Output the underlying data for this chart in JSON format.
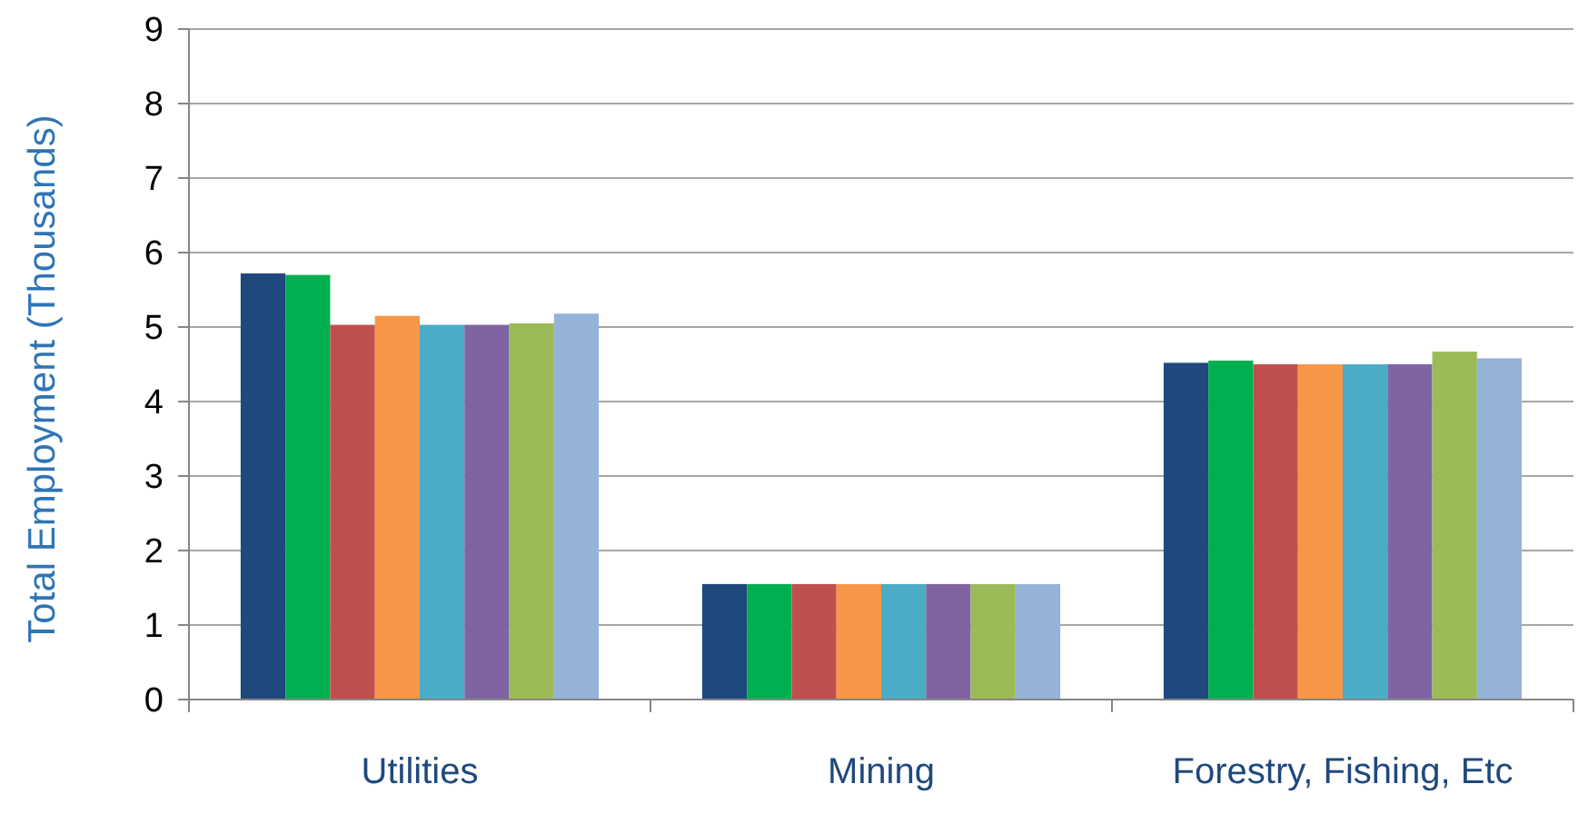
{
  "chart_data": {
    "type": "bar",
    "ylabel": "Total Employment (Thousands)",
    "categories": [
      "Utilities",
      "Mining",
      "Forestry, Fishing, Etc"
    ],
    "series": [
      {
        "color": "#1f497d",
        "values": [
          5.72,
          1.55,
          4.52
        ]
      },
      {
        "color": "#00b050",
        "values": [
          5.7,
          1.55,
          4.55
        ]
      },
      {
        "color": "#c0504d",
        "values": [
          5.03,
          1.55,
          4.5
        ]
      },
      {
        "color": "#f79646",
        "values": [
          5.15,
          1.55,
          4.5
        ]
      },
      {
        "color": "#4bacc6",
        "values": [
          5.03,
          1.55,
          4.5
        ]
      },
      {
        "color": "#8064a2",
        "values": [
          5.03,
          1.55,
          4.5
        ]
      },
      {
        "color": "#9bbb59",
        "values": [
          5.05,
          1.55,
          4.67
        ]
      },
      {
        "color": "#95b3d7",
        "values": [
          5.18,
          1.55,
          4.58
        ]
      }
    ],
    "ylim": [
      0,
      9
    ],
    "yticks": [
      0,
      1,
      2,
      3,
      4,
      5,
      6,
      7,
      8,
      9
    ],
    "grid": "y"
  }
}
